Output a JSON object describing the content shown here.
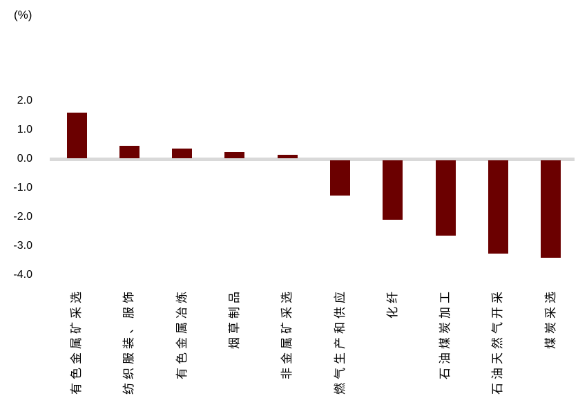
{
  "unit_label": "(%)",
  "colors": {
    "bar": "#6b0000",
    "zero_line": "#d9d9d9",
    "text": "#000000",
    "background": "#ffffff"
  },
  "chart_data": {
    "type": "bar",
    "title": "",
    "xlabel": "",
    "ylabel": "(%)",
    "ylim": [
      -4.0,
      2.0
    ],
    "yticks": [
      2,
      1,
      0,
      -1,
      -2,
      -3,
      -4
    ],
    "ytick_labels": [
      "2.0",
      "1.0",
      "0.0",
      "-1.0",
      "-2.0",
      "-3.0",
      "-4.0"
    ],
    "grid": false,
    "legend": null,
    "categories": [
      "有色金属矿采选",
      "纺织服装、服饰",
      "有色金属冶炼",
      "烟草制品",
      "非金属矿采选",
      "燃气生产和供应",
      "化纤",
      "石油煤炭加工",
      "石油天然气开采",
      "煤炭采选"
    ],
    "values": [
      1.6,
      0.45,
      0.35,
      0.25,
      0.15,
      -1.25,
      -2.1,
      -2.65,
      -3.25,
      -3.4
    ]
  }
}
